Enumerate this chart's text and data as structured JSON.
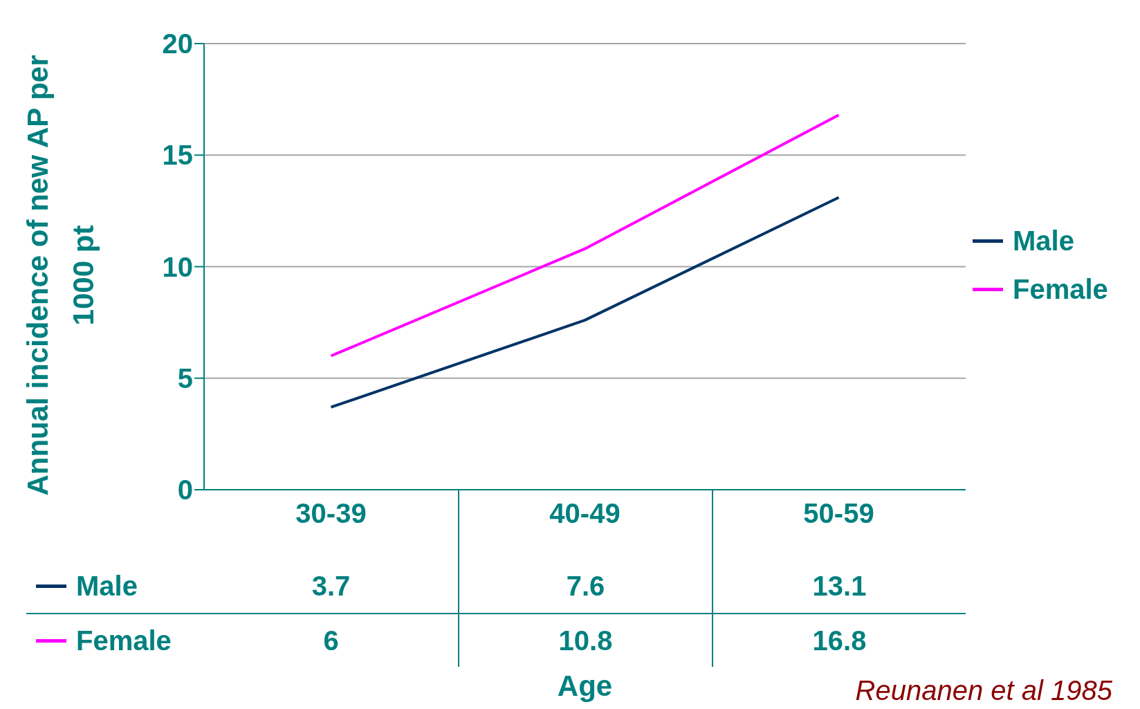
{
  "chart_data": {
    "type": "line",
    "xlabel": "Age",
    "ylabel": "Annual incidence of new AP per 1000 pt",
    "categories": [
      "30-39",
      "40-49",
      "50-59"
    ],
    "series": [
      {
        "name": "Male",
        "color": "#003366",
        "values": [
          3.7,
          7.6,
          13.1
        ]
      },
      {
        "name": "Female",
        "color": "#ff00ff",
        "values": [
          6,
          10.8,
          16.8
        ]
      }
    ],
    "ylim": [
      0,
      20
    ],
    "yticks": [
      0,
      5,
      10,
      15,
      20
    ],
    "grid": "y",
    "legend": "right",
    "data_labels": true,
    "marker": "none",
    "line_style": "solid",
    "annotations": [
      "Reunanen et al 1985"
    ]
  }
}
